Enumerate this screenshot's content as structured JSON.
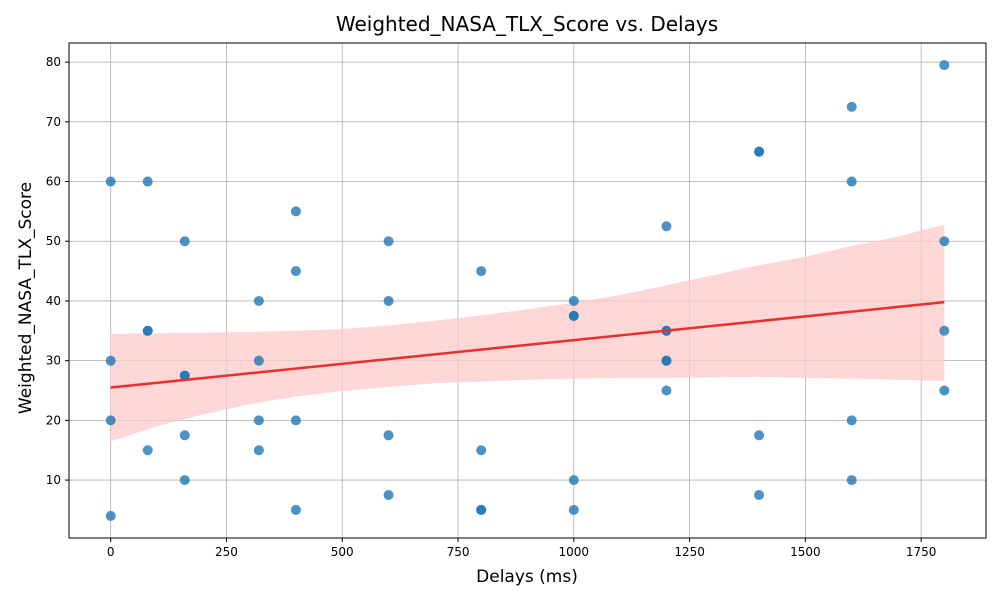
{
  "chart_data": {
    "type": "scatter",
    "title": "Weighted_NASA_TLX_Score vs. Delays",
    "xlabel": "Delays (ms)",
    "ylabel": "Weighted_NASA_TLX_Score",
    "xlim": [
      -90,
      1890
    ],
    "ylim": [
      0.3,
      83.2
    ],
    "xticks": [
      0,
      250,
      500,
      750,
      1000,
      1250,
      1500,
      1750
    ],
    "yticks": [
      10,
      20,
      30,
      40,
      50,
      60,
      70,
      80
    ],
    "grid": true,
    "point_color": "#1f77b4",
    "regression": {
      "x": [
        0,
        1800
      ],
      "y": [
        25.5,
        39.8
      ],
      "ci_x": [
        0,
        100,
        200,
        300,
        400,
        500,
        600,
        700,
        800,
        900,
        1000,
        1100,
        1200,
        1300,
        1400,
        1500,
        1600,
        1700,
        1800
      ],
      "ci_lower": [
        16.5,
        19.0,
        21.0,
        22.7,
        24.0,
        24.9,
        25.6,
        26.2,
        26.5,
        26.8,
        27.0,
        27.1,
        27.1,
        27.2,
        27.3,
        27.1,
        27.0,
        26.8,
        26.6
      ],
      "ci_upper": [
        34.5,
        34.6,
        34.7,
        34.8,
        35.0,
        35.3,
        35.9,
        36.7,
        37.6,
        38.6,
        39.7,
        41.0,
        42.6,
        44.3,
        46.0,
        47.4,
        49.2,
        50.8,
        52.8
      ],
      "line_color": "#e8302e",
      "ci_color": "#ffc9c9"
    },
    "points": [
      {
        "x": 0,
        "y": 60
      },
      {
        "x": 0,
        "y": 30
      },
      {
        "x": 0,
        "y": 20
      },
      {
        "x": 0,
        "y": 4
      },
      {
        "x": 80,
        "y": 60
      },
      {
        "x": 80,
        "y": 35
      },
      {
        "x": 80,
        "y": 35
      },
      {
        "x": 80,
        "y": 15
      },
      {
        "x": 160,
        "y": 50
      },
      {
        "x": 160,
        "y": 27.5
      },
      {
        "x": 160,
        "y": 27.5
      },
      {
        "x": 160,
        "y": 17.5
      },
      {
        "x": 160,
        "y": 10
      },
      {
        "x": 320,
        "y": 40
      },
      {
        "x": 320,
        "y": 30
      },
      {
        "x": 320,
        "y": 20
      },
      {
        "x": 320,
        "y": 15
      },
      {
        "x": 400,
        "y": 55
      },
      {
        "x": 400,
        "y": 45
      },
      {
        "x": 400,
        "y": 20
      },
      {
        "x": 400,
        "y": 5
      },
      {
        "x": 600,
        "y": 50
      },
      {
        "x": 600,
        "y": 40
      },
      {
        "x": 600,
        "y": 17.5
      },
      {
        "x": 600,
        "y": 7.5
      },
      {
        "x": 800,
        "y": 45
      },
      {
        "x": 800,
        "y": 15
      },
      {
        "x": 800,
        "y": 5
      },
      {
        "x": 800,
        "y": 5
      },
      {
        "x": 1000,
        "y": 40
      },
      {
        "x": 1000,
        "y": 37.5
      },
      {
        "x": 1000,
        "y": 37.5
      },
      {
        "x": 1000,
        "y": 10
      },
      {
        "x": 1000,
        "y": 5
      },
      {
        "x": 1200,
        "y": 52.5
      },
      {
        "x": 1200,
        "y": 35
      },
      {
        "x": 1200,
        "y": 35
      },
      {
        "x": 1200,
        "y": 30
      },
      {
        "x": 1200,
        "y": 30
      },
      {
        "x": 1200,
        "y": 25
      },
      {
        "x": 1400,
        "y": 65
      },
      {
        "x": 1400,
        "y": 65
      },
      {
        "x": 1400,
        "y": 17.5
      },
      {
        "x": 1400,
        "y": 7.5
      },
      {
        "x": 1600,
        "y": 72.5
      },
      {
        "x": 1600,
        "y": 60
      },
      {
        "x": 1600,
        "y": 20
      },
      {
        "x": 1600,
        "y": 10
      },
      {
        "x": 1800,
        "y": 79.5
      },
      {
        "x": 1800,
        "y": 50
      },
      {
        "x": 1800,
        "y": 35
      },
      {
        "x": 1800,
        "y": 25
      }
    ]
  }
}
